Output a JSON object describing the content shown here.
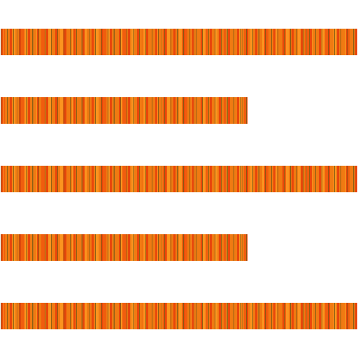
{
  "icon": {
    "name": "text-align-left-icon",
    "colors": {
      "base": "#f07a12",
      "dark_streak": "#e8400a",
      "light_streak": "#fc9620",
      "brown_streak": "#7a5c14",
      "background": "#ffffff"
    },
    "lines": [
      {
        "name": "line-long"
      },
      {
        "name": "line-short"
      },
      {
        "name": "line-long"
      },
      {
        "name": "line-short"
      },
      {
        "name": "line-long"
      }
    ]
  }
}
